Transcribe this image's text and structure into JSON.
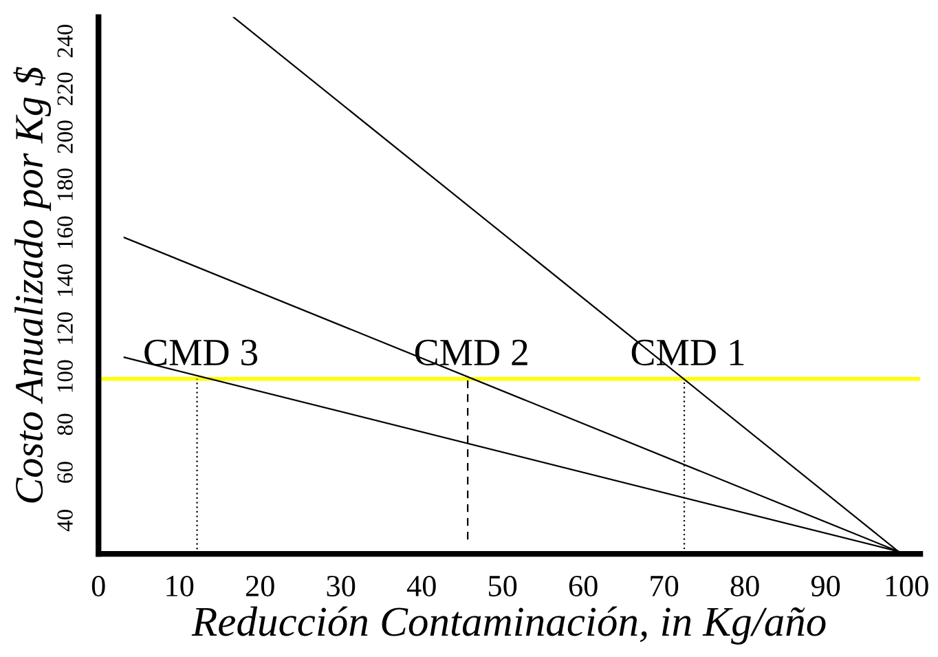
{
  "chart_data": {
    "type": "line",
    "xlabel": "Reducción Contaminación, in Kg/año",
    "ylabel": "Costo Anualizado por Kg $",
    "xlim": [
      0,
      101.7
    ],
    "ylim": [
      26,
      250
    ],
    "xticks": [
      0,
      10,
      20,
      30,
      40,
      50,
      60,
      70,
      80,
      90,
      100
    ],
    "yticks": [
      40,
      60,
      80,
      100,
      120,
      140,
      160,
      180,
      200,
      220,
      240
    ],
    "grid": false,
    "marker": "none",
    "series": [
      {
        "color": "#000000",
        "x": [
          16.7,
          99
        ],
        "values": [
          250,
          27
        ],
        "line_style": "solid"
      },
      {
        "color": "#000000",
        "x": [
          3.2,
          99
        ],
        "values": [
          158,
          27
        ],
        "line_style": "solid"
      },
      {
        "color": "#000000",
        "x": [
          3.2,
          99
        ],
        "values": [
          108,
          27
        ],
        "line_style": "solid"
      },
      {
        "color": "#000000",
        "x": [
          12.2,
          12.2
        ],
        "values": [
          26,
          99
        ],
        "line_style": "dotted"
      },
      {
        "color": "#000000",
        "x": [
          45.7,
          45.7
        ],
        "values": [
          32,
          99
        ],
        "line_style": "dashed"
      },
      {
        "color": "#000000",
        "x": [
          72.5,
          72.5
        ],
        "values": [
          28,
          99
        ],
        "line_style": "dotted"
      }
    ],
    "ref_lines": [
      {
        "axis": "y",
        "value": 99,
        "color": "#ffff00"
      }
    ],
    "annotations": [
      {
        "text": "CMD 3",
        "x": 12.2,
        "y": 99
      },
      {
        "text": "CMD 2",
        "x": 45.7,
        "y": 99
      },
      {
        "text": "CMD 1",
        "x": 72.5,
        "y": 99
      }
    ]
  }
}
